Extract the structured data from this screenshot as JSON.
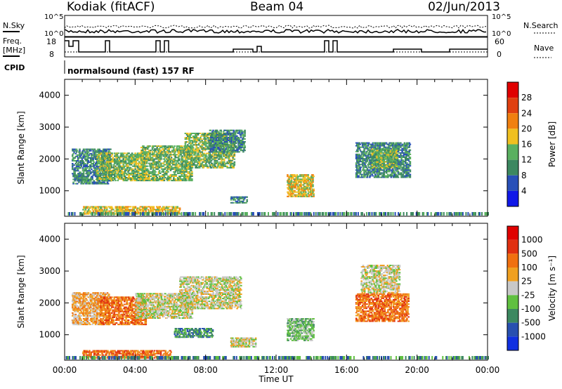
{
  "header": {
    "station": "Kodiak (fitACF)",
    "beam": "Beam 04",
    "date": "02/Jun/2013"
  },
  "top_panels": {
    "nsky_label": "N.Sky",
    "nsearch_label": "N.Search",
    "freq_label_1": "Freq.",
    "freq_label_2": "[MHz]",
    "nave_label": "Nave",
    "cpid_label": "CPID",
    "cpid_value": "normalsound (fast) 157 RF",
    "noise_ticks_left": [
      "10^5",
      "10^0"
    ],
    "noise_ticks_right": [
      "10^5",
      "10^0"
    ],
    "freq_ticks": [
      "18",
      "8"
    ],
    "nave_ticks": [
      "60",
      "0"
    ]
  },
  "chart_data": [
    {
      "type": "heatmap",
      "name": "power",
      "xlabel": "",
      "ylabel": "Slant Range [km]",
      "ylim": [
        200,
        4500
      ],
      "yticks": [
        "1000",
        "2000",
        "3000",
        "4000"
      ],
      "colorbar": {
        "label": "Power [dB]",
        "ticks": [
          "4",
          "8",
          "12",
          "16",
          "20",
          "24",
          "28"
        ],
        "colors": [
          "#1018e8",
          "#2850b8",
          "#3c8860",
          "#5ab060",
          "#f0c020",
          "#f08010",
          "#e04010",
          "#e00000"
        ]
      },
      "regions": [
        {
          "t0": 0.4,
          "t1": 2.6,
          "r0": 1200,
          "r1": 2300,
          "level": 2
        },
        {
          "t0": 1.8,
          "t1": 4.6,
          "r0": 1300,
          "r1": 2200,
          "level": 3
        },
        {
          "t0": 4.3,
          "t1": 7.2,
          "r0": 1300,
          "r1": 2400,
          "level": 3
        },
        {
          "t0": 6.8,
          "t1": 9.6,
          "r0": 1700,
          "r1": 2800,
          "level": 3
        },
        {
          "t0": 8.2,
          "t1": 10.2,
          "r0": 2200,
          "r1": 2900,
          "level": 2
        },
        {
          "t0": 9.4,
          "t1": 10.3,
          "r0": 600,
          "r1": 800,
          "level": 2
        },
        {
          "t0": 12.6,
          "t1": 14.1,
          "r0": 800,
          "r1": 1500,
          "level": 4
        },
        {
          "t0": 16.5,
          "t1": 19.6,
          "r0": 1400,
          "r1": 2500,
          "level": 2
        },
        {
          "t0": 17.4,
          "t1": 18.8,
          "r0": 1700,
          "r1": 2300,
          "level": 3
        },
        {
          "t0": 1.0,
          "t1": 6.5,
          "r0": 250,
          "r1": 500,
          "level": 4
        }
      ]
    },
    {
      "type": "heatmap",
      "name": "velocity",
      "xlabel": "Time UT",
      "ylabel": "Slant Range [km]",
      "ylim": [
        200,
        4500
      ],
      "yticks": [
        "1000",
        "2000",
        "3000",
        "4000"
      ],
      "xticks": [
        "00:00",
        "04:00",
        "08:00",
        "12:00",
        "16:00",
        "20:00",
        "00:00"
      ],
      "colorbar": {
        "label": "Velocity [m s⁻¹]",
        "ticks": [
          "1000",
          "500",
          "100",
          "25",
          "-25",
          "-100",
          "-500",
          "-1000"
        ],
        "colors": [
          "#1030e0",
          "#2850b0",
          "#3c8860",
          "#60c040",
          "#c8c8c8",
          "#f0a020",
          "#f07010",
          "#e03010",
          "#e00000"
        ]
      },
      "regions": [
        {
          "t0": 0.4,
          "t1": 2.5,
          "r0": 1300,
          "r1": 2300,
          "level": 5
        },
        {
          "t0": 2.0,
          "t1": 4.6,
          "r0": 1300,
          "r1": 2200,
          "level": 6
        },
        {
          "t0": 4.0,
          "t1": 7.2,
          "r0": 1500,
          "r1": 2300,
          "level": 4
        },
        {
          "t0": 6.5,
          "t1": 10.0,
          "r0": 1800,
          "r1": 2800,
          "level": 4
        },
        {
          "t0": 6.2,
          "t1": 8.4,
          "r0": 900,
          "r1": 1200,
          "level": 2
        },
        {
          "t0": 9.4,
          "t1": 10.8,
          "r0": 600,
          "r1": 900,
          "level": 4
        },
        {
          "t0": 12.6,
          "t1": 14.1,
          "r0": 800,
          "r1": 1500,
          "level": 3
        },
        {
          "t0": 16.5,
          "t1": 19.5,
          "r0": 1400,
          "r1": 2300,
          "level": 6
        },
        {
          "t0": 16.8,
          "t1": 19.0,
          "r0": 2300,
          "r1": 3200,
          "level": 4
        },
        {
          "t0": 1.0,
          "t1": 6.0,
          "r0": 250,
          "r1": 500,
          "level": 6
        }
      ]
    }
  ]
}
